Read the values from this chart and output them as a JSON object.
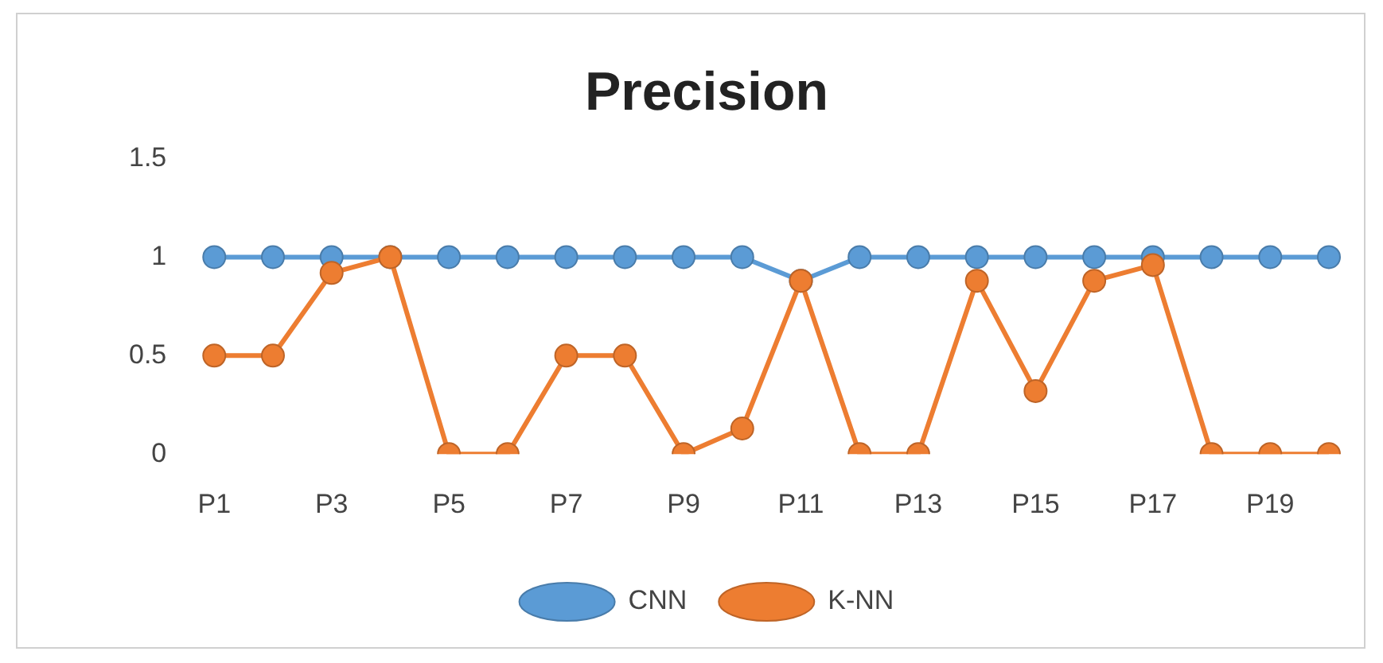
{
  "chart_data": {
    "type": "line",
    "title": "Precision",
    "categories": [
      "P1",
      null,
      "P3",
      null,
      "P5",
      null,
      "P7",
      null,
      "P9",
      null,
      "P11",
      null,
      "P13",
      null,
      "P15",
      null,
      "P17",
      null,
      "P19",
      null
    ],
    "series": [
      {
        "name": "CNN",
        "color": "#5b9bd5",
        "values": [
          1,
          1,
          1,
          1,
          1,
          1,
          1,
          1,
          1,
          1,
          0.88,
          1,
          1,
          1,
          1,
          1,
          1,
          1,
          1,
          1
        ]
      },
      {
        "name": "K-NN",
        "color": "#ed7d31",
        "values": [
          0.5,
          0.5,
          0.92,
          1,
          0,
          0,
          0.5,
          0.5,
          0,
          0.13,
          0.88,
          0,
          0,
          0.88,
          0.32,
          0.88,
          0.96,
          0,
          0,
          0
        ]
      }
    ],
    "ylim": [
      0,
      1.5
    ],
    "yticks": [
      0,
      0.5,
      1,
      1.5
    ],
    "marker": "circle",
    "line_style": "solid",
    "legend": "bottom"
  }
}
